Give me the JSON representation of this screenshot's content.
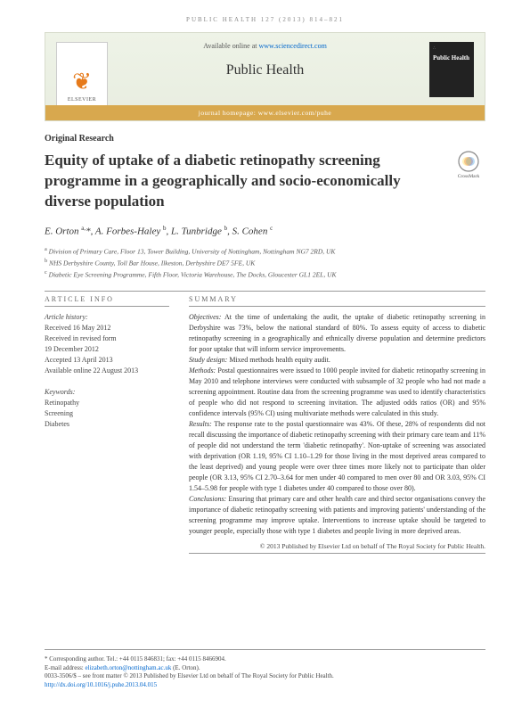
{
  "running_head": "PUBLIC HEALTH 127 (2013) 814–821",
  "banner": {
    "available": "Available online at",
    "available_link": "www.sciencedirect.com",
    "journal": "Public Health",
    "homepage_label": "journal homepage:",
    "homepage_url": "www.elsevier.com/puhe",
    "publisher": "ELSEVIER",
    "cover_small": "∴",
    "cover_title": "Public Health"
  },
  "article_type": "Original Research",
  "title": "Equity of uptake of a diabetic retinopathy screening programme in a geographically and socio-economically diverse population",
  "crossmark_label": "CrossMark",
  "authors_html": "E. Orton <sup>a,</sup>*, A. Forbes-Haley <sup>b</sup>, L. Tunbridge <sup>b</sup>, S. Cohen <sup>c</sup>",
  "affiliations": [
    "a Division of Primary Care, Floor 13, Tower Building, University of Nottingham, Nottingham NG7 2RD, UK",
    "b NHS Derbyshire County, Toll Bar House, Ilkeston, Derbyshire DE7 5FE, UK",
    "c Diabetic Eye Screening Programme, Fifth Floor, Victoria Warehouse, The Docks, Gloucester GL1 2EL, UK"
  ],
  "info": {
    "head": "ARTICLE INFO",
    "history_label": "Article history:",
    "history": [
      "Received 16 May 2012",
      "Received in revised form",
      "19 December 2012",
      "Accepted 13 April 2013",
      "Available online 22 August 2013"
    ],
    "keywords_label": "Keywords:",
    "keywords": [
      "Retinopathy",
      "Screening",
      "Diabetes"
    ]
  },
  "summary": {
    "head": "SUMMARY",
    "objectives_label": "Objectives:",
    "objectives": "At the time of undertaking the audit, the uptake of diabetic retinopathy screening in Derbyshire was 73%, below the national standard of 80%. To assess equity of access to diabetic retinopathy screening in a geographically and ethnically diverse population and determine predictors for poor uptake that will inform service improvements.",
    "design_label": "Study design:",
    "design": "Mixed methods health equity audit.",
    "methods_label": "Methods:",
    "methods": "Postal questionnaires were issued to 1000 people invited for diabetic retinopathy screening in May 2010 and telephone interviews were conducted with subsample of 32 people who had not made a screening appointment. Routine data from the screening programme was used to identify characteristics of people who did not respond to screening invitation. The adjusted odds ratios (OR) and 95% confidence intervals (95% CI) using multivariate methods were calculated in this study.",
    "results_label": "Results:",
    "results": "The response rate to the postal questionnaire was 43%. Of these, 28% of respondents did not recall discussing the importance of diabetic retinopathy screening with their primary care team and 11% of people did not understand the term 'diabetic retinopathy'. Non-uptake of screening was associated with deprivation (OR 1.19, 95% CI 1.10–1.29 for those living in the most deprived areas compared to the least deprived) and young people were over three times more likely not to participate than older people (OR 3.13, 95% CI 2.70–3.64 for men under 40 compared to men over 80 and OR 3.03, 95% CI 1.54–5.98 for people with type 1 diabetes under 40 compared to those over 80).",
    "conclusions_label": "Conclusions:",
    "conclusions": "Ensuring that primary care and other health care and third sector organisations convey the importance of diabetic retinopathy screening with patients and improving patients' understanding of the screening programme may improve uptake. Interventions to increase uptake should be targeted to younger people, especially those with type 1 diabetes and people living in more deprived areas.",
    "copyright": "© 2013 Published by Elsevier Ltd on behalf of The Royal Society for Public Health."
  },
  "footer": {
    "corresponding": "* Corresponding author. Tel.: +44 0115 846831; fax: +44 0115 8466904.",
    "email_label": "E-mail address:",
    "email": "elizabeth.orton@nottingham.ac.uk",
    "email_name": "(E. Orton).",
    "issn": "0033-3506/$ – see front matter © 2013 Published by Elsevier Ltd on behalf of The Royal Society for Public Health.",
    "doi": "http://dx.doi.org/10.1016/j.puhe.2013.04.015"
  }
}
